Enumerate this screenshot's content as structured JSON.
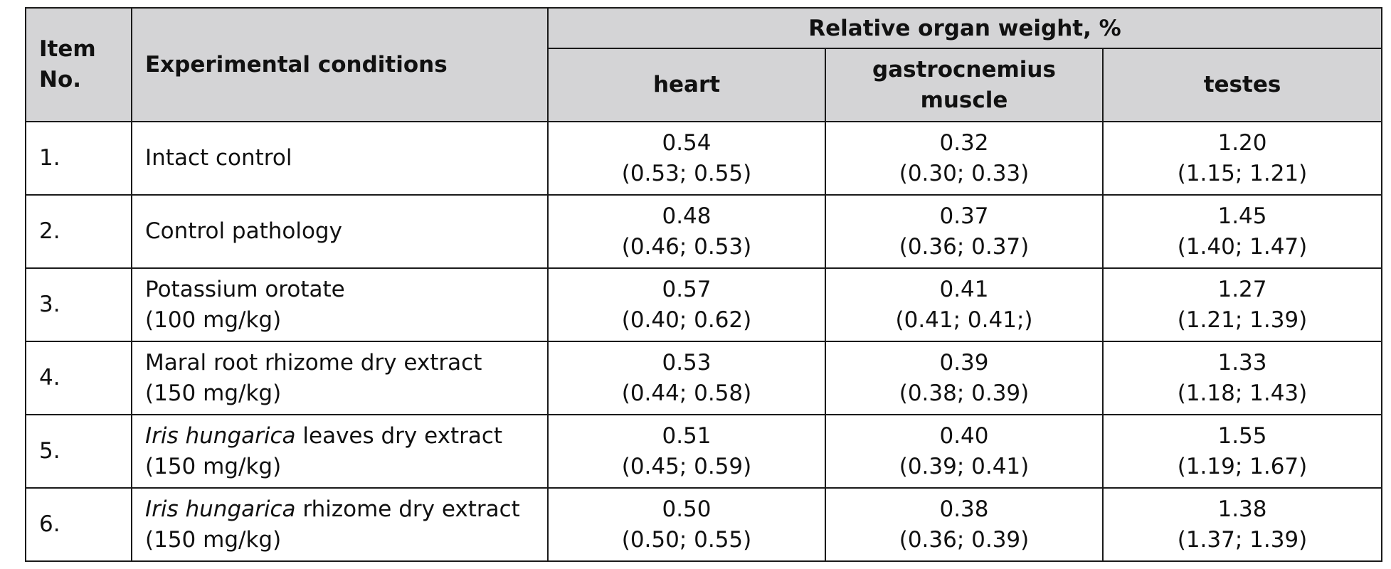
{
  "table": {
    "header": {
      "item_no": [
        "Item",
        "No."
      ],
      "conditions": "Experimental conditions",
      "group": "Relative organ weight, %",
      "columns": [
        [
          "heart"
        ],
        [
          "gastrocnemius",
          "muscle"
        ],
        [
          "testes"
        ]
      ]
    },
    "rows": [
      {
        "num": "1.",
        "cond": [
          {
            "italic": "",
            "text": "Intact control"
          }
        ],
        "values": [
          [
            "0.54",
            "(0.53; 0.55)"
          ],
          [
            "0.32",
            "(0.30; 0.33)"
          ],
          [
            "1.20",
            "(1.15; 1.21)"
          ]
        ]
      },
      {
        "num": "2.",
        "cond": [
          {
            "italic": "",
            "text": "Control pathology"
          }
        ],
        "values": [
          [
            "0.48",
            "(0.46; 0.53)"
          ],
          [
            "0.37",
            "(0.36; 0.37)"
          ],
          [
            "1.45",
            "(1.40; 1.47)"
          ]
        ]
      },
      {
        "num": "3.",
        "cond": [
          {
            "italic": "",
            "text": "Potassium orotate"
          },
          {
            "italic": "",
            "text": "(100 mg/kg)"
          }
        ],
        "values": [
          [
            "0.57",
            "(0.40; 0.62)"
          ],
          [
            "0.41",
            "(0.41; 0.41;)"
          ],
          [
            "1.27",
            "(1.21; 1.39)"
          ]
        ]
      },
      {
        "num": "4.",
        "cond": [
          {
            "italic": "",
            "text": "Maral root rhizome dry extract"
          },
          {
            "italic": "",
            "text": "(150 mg/kg)"
          }
        ],
        "values": [
          [
            "0.53",
            "(0.44; 0.58)"
          ],
          [
            "0.39",
            "(0.38; 0.39)"
          ],
          [
            "1.33",
            "(1.18; 1.43)"
          ]
        ]
      },
      {
        "num": "5.",
        "cond": [
          {
            "italic": "Iris hungarica",
            "text": " leaves dry extract"
          },
          {
            "italic": "",
            "text": "(150 mg/kg)"
          }
        ],
        "values": [
          [
            "0.51",
            "(0.45; 0.59)"
          ],
          [
            "0.40",
            "(0.39; 0.41)"
          ],
          [
            "1.55",
            "(1.19; 1.67)"
          ]
        ]
      },
      {
        "num": "6.",
        "cond": [
          {
            "italic": "Iris hungarica",
            "text": " rhizome dry extract"
          },
          {
            "italic": "",
            "text": "(150 mg/kg)"
          }
        ],
        "values": [
          [
            "0.50",
            "(0.50; 0.55)"
          ],
          [
            "0.38",
            "(0.36; 0.39)"
          ],
          [
            "1.38",
            "(1.37; 1.39)"
          ]
        ]
      }
    ]
  }
}
